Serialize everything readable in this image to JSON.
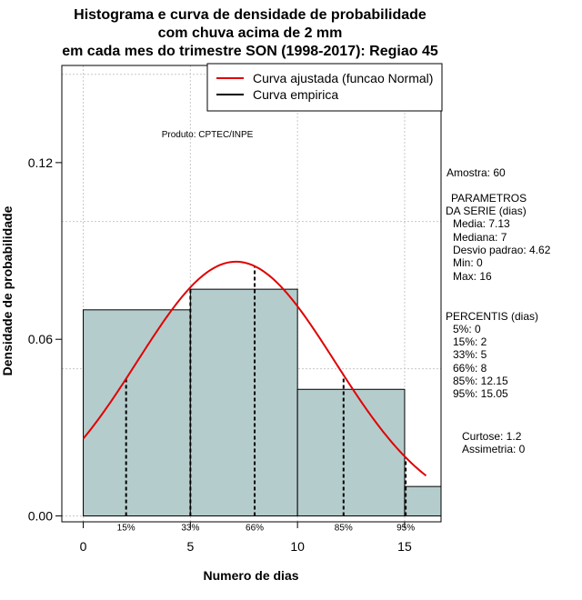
{
  "chart_data": {
    "type": "histogram",
    "title_lines": [
      "Histograma e curva de densidade de probabilidade",
      "com chuva acima de 2 mm",
      "em cada mes do trimestre SON (1998-2017): Regiao 45"
    ],
    "xlabel": "Numero de dias",
    "ylabel": "Densidade de probabilidade",
    "xlim": [
      -1,
      16.7
    ],
    "ylim": [
      -0.002,
      0.153
    ],
    "x_ticks": [
      0,
      5,
      10,
      15
    ],
    "y_ticks": [
      0.0,
      0.06,
      0.12
    ],
    "y_tick_labels": [
      "0.00",
      "0.06",
      "0.12"
    ],
    "bins": [
      {
        "start": 0,
        "end": 5,
        "density": 0.07
      },
      {
        "start": 5,
        "end": 10,
        "density": 0.077
      },
      {
        "start": 10,
        "end": 15,
        "density": 0.043
      },
      {
        "start": 15,
        "end": 16.7,
        "density": 0.01
      }
    ],
    "bar_color": "#b5cccc",
    "normal_curve": {
      "mean": 7.13,
      "sd": 4.62,
      "x_from": 0,
      "x_to": 16,
      "color": "#e00000"
    },
    "percentile_lines": [
      {
        "label": "15%",
        "x": 2
      },
      {
        "label": "33%",
        "x": 5
      },
      {
        "label": "66%",
        "x": 8
      },
      {
        "label": "85%",
        "x": 12.15
      },
      {
        "label": "95%",
        "x": 15.05
      }
    ],
    "legend": [
      {
        "label": "Curva ajustada (funcao Normal)",
        "color": "#e00000"
      },
      {
        "label": "Curva empirica",
        "color": "#000000"
      }
    ],
    "annotation": "Produto: CPTEC/INPE"
  },
  "sidebar": {
    "amostra": "Amostra: 60",
    "params_title_1": "PARAMETROS",
    "params_title_2": "DA SERIE (dias)",
    "params": [
      "Media: 7.13",
      "Mediana: 7",
      "Desvio padrao: 4.62",
      "Min: 0",
      "Max: 16"
    ],
    "percentis_title": "PERCENTIS (dias)",
    "percentis": [
      "5%: 0",
      "15%: 2",
      "33%: 5",
      "66%: 8",
      "85%: 12.15",
      "95%: 15.05"
    ],
    "curtose": "Curtose: 1.2",
    "assimetria": "Assimetria: 0"
  }
}
